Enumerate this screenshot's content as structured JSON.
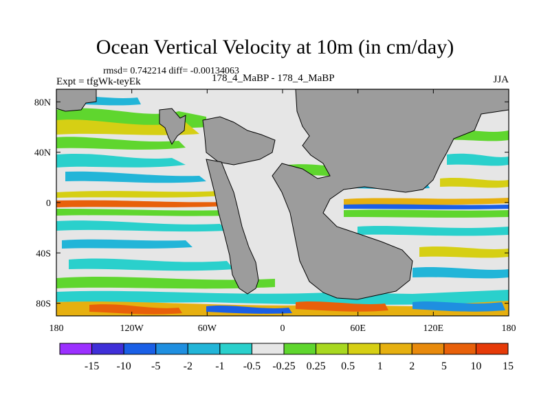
{
  "title": "Ocean Vertical Velocity at 10m (in cm/day)",
  "stats": "rmsd= 0.742214 diff= -0.00134063",
  "experiment": "Expt = tfgWk-teyEk",
  "comparison": "178_4_MaBP - 178_4_MaBP",
  "season": "JJA",
  "map": {
    "lon_range": [
      -180,
      180
    ],
    "lat_range": [
      -90,
      90
    ],
    "x_ticks": [
      {
        "value": -180,
        "label": "180"
      },
      {
        "value": -120,
        "label": "120W"
      },
      {
        "value": -60,
        "label": "60W"
      },
      {
        "value": 0,
        "label": "0"
      },
      {
        "value": 60,
        "label": "60E"
      },
      {
        "value": 120,
        "label": "120E"
      },
      {
        "value": 180,
        "label": "180"
      }
    ],
    "y_ticks": [
      {
        "value": 80,
        "label": "80N"
      },
      {
        "value": 40,
        "label": "40N"
      },
      {
        "value": 0,
        "label": "0"
      },
      {
        "value": -40,
        "label": "40S"
      },
      {
        "value": -80,
        "label": "80S"
      }
    ],
    "land_color": "#9c9c9c",
    "ocean_background": "#e6e6e6"
  },
  "colorbar": {
    "colors": [
      "#9b30ff",
      "#3f2fd8",
      "#1a5fe6",
      "#1f8fe0",
      "#22b5d8",
      "#2ad0cc",
      "#e6e6e6",
      "#5fd62e",
      "#a8d820",
      "#d6cf14",
      "#e6b010",
      "#e88a0c",
      "#e8600a",
      "#e63a08"
    ],
    "labels": [
      "-15",
      "-10",
      "-5",
      "-2",
      "-1",
      "-0.5",
      "-0.25",
      "0.25",
      "0.5",
      "1",
      "2",
      "5",
      "10",
      "15"
    ]
  }
}
